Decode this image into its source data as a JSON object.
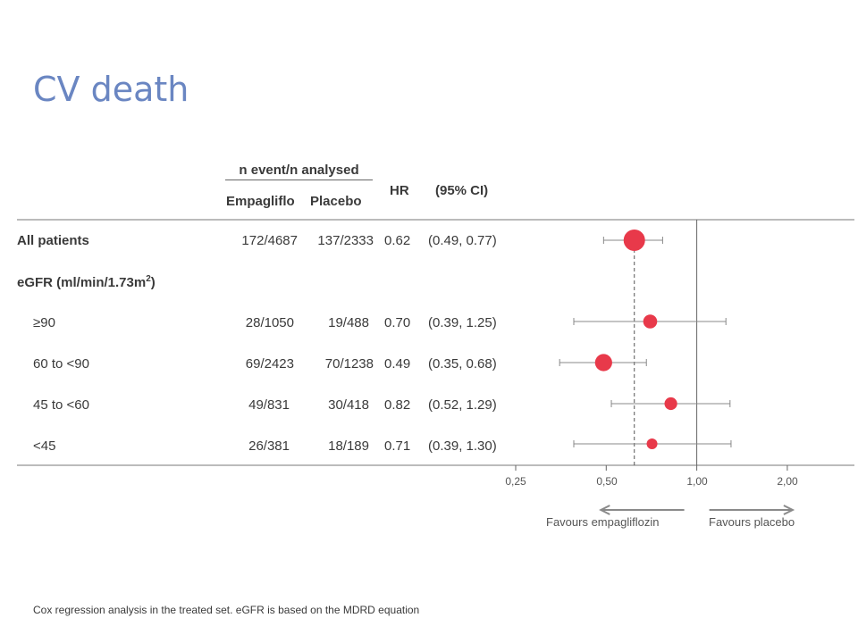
{
  "title": "CV death",
  "header": {
    "group": "n event/n analysed",
    "col_empa": "Empagliflo",
    "col_placebo": "Placebo",
    "col_hr": "HR",
    "col_ci": "(95% CI)"
  },
  "subgroup_header": {
    "text": "eGFR (ml/min/1.73m",
    "sup": "2",
    "close": ")"
  },
  "footnote": "Cox regression analysis in the treated set. eGFR is based on the MDRD equation",
  "favours": {
    "left": "Favours empagliflozin",
    "right": "Favours placebo"
  },
  "colors": {
    "marker": "#e8394a",
    "axis": "#666666",
    "arrow": "#8a8a8a",
    "title": "#6a86c2"
  },
  "chart_data": {
    "type": "forest",
    "x_scale": "log",
    "x_ticks": [
      0.25,
      0.5,
      1.0,
      2.0
    ],
    "x_tick_labels": [
      "0,25",
      "0,50",
      "1,00",
      "2,00"
    ],
    "reference_line": 1.0,
    "overall_line": 0.62,
    "rows": [
      {
        "label": "All patients",
        "bold": true,
        "empa": "172/4687",
        "placebo": "137/2333",
        "hr_text": "0.62",
        "ci_text": "(0.49, 0.77)",
        "hr": 0.62,
        "lo": 0.49,
        "hi": 0.77,
        "weight": 1.0
      },
      {
        "label": "≥90",
        "bold": false,
        "empa": "28/1050",
        "placebo": "19/488",
        "hr_text": "0.70",
        "ci_text": "(0.39, 1.25)",
        "hr": 0.7,
        "lo": 0.39,
        "hi": 1.25,
        "weight": 0.5
      },
      {
        "label": "60 to <90",
        "bold": false,
        "empa": "69/2423",
        "placebo": "70/1238",
        "hr_text": "0.49",
        "ci_text": "(0.35, 0.68)",
        "hr": 0.49,
        "lo": 0.35,
        "hi": 0.68,
        "weight": 0.72
      },
      {
        "label": "45 to <60",
        "bold": false,
        "empa": "49/831",
        "placebo": "30/418",
        "hr_text": "0.82",
        "ci_text": "(0.52, 1.29)",
        "hr": 0.82,
        "lo": 0.52,
        "hi": 1.29,
        "weight": 0.42
      },
      {
        "label": "<45",
        "bold": false,
        "empa": "26/381",
        "placebo": "18/189",
        "hr_text": "0.71",
        "ci_text": "(0.39, 1.30)",
        "hr": 0.71,
        "lo": 0.39,
        "hi": 1.3,
        "weight": 0.3
      }
    ]
  }
}
